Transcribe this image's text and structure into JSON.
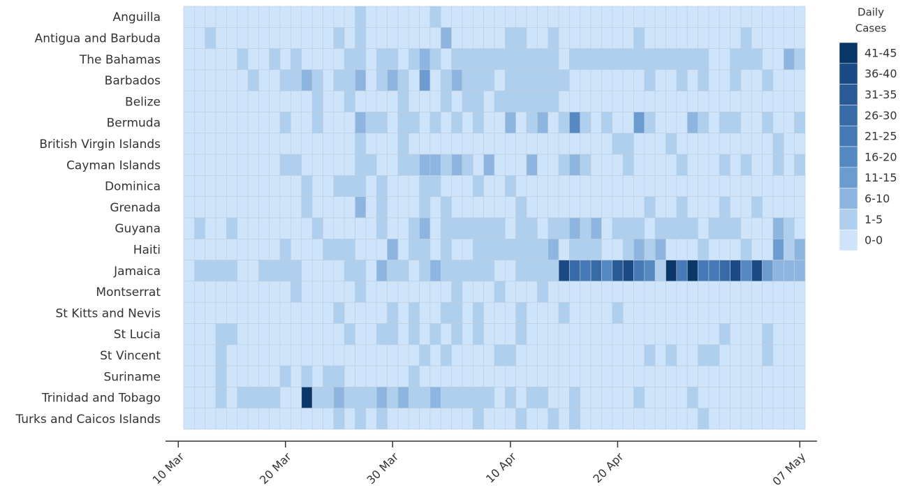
{
  "chart_data": {
    "type": "heatmap",
    "categories": [
      "Anguilla",
      "Antigua and Barbuda",
      "The Bahamas",
      "Barbados",
      "Belize",
      "Bermuda",
      "British Virgin Islands",
      "Cayman Islands",
      "Dominica",
      "Grenada",
      "Guyana",
      "Haiti",
      "Jamaica",
      "Montserrat",
      "St Kitts and Nevis",
      "St Lucia",
      "St Vincent",
      "Suriname",
      "Trinidad and Tobago",
      "Turks and Caicos Islands"
    ],
    "x": [
      1,
      2,
      3,
      4,
      5,
      6,
      7,
      8,
      9,
      10,
      11,
      12,
      13,
      14,
      15,
      16,
      17,
      18,
      19,
      20,
      21,
      22,
      23,
      24,
      25,
      26,
      27,
      28,
      29,
      30,
      31,
      32,
      33,
      34,
      35,
      36,
      37,
      38,
      39,
      40,
      41,
      42,
      43,
      44,
      45,
      46,
      47,
      48,
      49,
      50,
      51,
      52,
      53,
      54,
      55,
      56,
      57,
      58
    ],
    "xlim": [
      0.5,
      58.5
    ],
    "xticks": [
      {
        "value": 0,
        "label": "10 Mar"
      },
      {
        "value": 10,
        "label": "20 Mar"
      },
      {
        "value": 20,
        "label": "30 Mar"
      },
      {
        "value": 31,
        "label": "10 Apr"
      },
      {
        "value": 41,
        "label": "20 Apr"
      },
      {
        "value": 58,
        "label": "07 May"
      }
    ],
    "legend_title": [
      "Daily",
      "Cases"
    ],
    "color_bins": [
      {
        "label": "41-45",
        "color": "#0b3668"
      },
      {
        "label": "36-40",
        "color": "#1c4a84"
      },
      {
        "label": "31-35",
        "color": "#2a5a96"
      },
      {
        "label": "26-30",
        "color": "#376aa7"
      },
      {
        "label": "21-25",
        "color": "#4679b5"
      },
      {
        "label": "16-20",
        "color": "#5689c2"
      },
      {
        "label": "11-15",
        "color": "#6c9bcf"
      },
      {
        "label": "6-10",
        "color": "#8db5df"
      },
      {
        "label": "1-5",
        "color": "#afcfef"
      },
      {
        "label": "0-0",
        "color": "#cde4fb"
      }
    ],
    "values": [
      [
        0,
        0,
        0,
        0,
        0,
        0,
        0,
        0,
        0,
        0,
        0,
        0,
        0,
        0,
        0,
        0,
        2,
        0,
        0,
        0,
        0,
        0,
        0,
        2,
        0,
        0,
        0,
        0,
        0,
        0,
        0,
        0,
        0,
        0,
        0,
        0,
        0,
        0,
        0,
        0,
        0,
        0,
        0,
        0,
        0,
        0,
        0,
        0,
        0,
        0,
        0,
        0,
        0,
        0,
        0,
        0,
        0,
        0
      ],
      [
        0,
        0,
        2,
        0,
        0,
        0,
        0,
        0,
        0,
        0,
        0,
        0,
        0,
        0,
        2,
        0,
        2,
        0,
        0,
        0,
        0,
        0,
        0,
        0,
        7,
        0,
        0,
        0,
        0,
        0,
        2,
        2,
        0,
        0,
        2,
        0,
        0,
        0,
        0,
        0,
        0,
        0,
        2,
        0,
        0,
        0,
        0,
        0,
        0,
        0,
        0,
        0,
        2,
        0,
        0,
        0,
        0,
        0
      ],
      [
        0,
        0,
        0,
        0,
        0,
        2,
        0,
        0,
        2,
        0,
        2,
        0,
        0,
        0,
        0,
        2,
        2,
        0,
        2,
        2,
        0,
        2,
        7,
        2,
        0,
        2,
        2,
        2,
        2,
        2,
        2,
        2,
        2,
        2,
        2,
        0,
        2,
        2,
        2,
        2,
        2,
        2,
        2,
        2,
        2,
        2,
        2,
        2,
        2,
        0,
        0,
        2,
        2,
        2,
        0,
        0,
        7,
        2
      ],
      [
        0,
        0,
        0,
        0,
        0,
        0,
        2,
        0,
        0,
        2,
        2,
        7,
        2,
        0,
        2,
        2,
        7,
        0,
        2,
        7,
        2,
        0,
        12,
        0,
        2,
        7,
        2,
        2,
        2,
        0,
        2,
        2,
        2,
        2,
        2,
        2,
        0,
        0,
        0,
        0,
        0,
        0,
        0,
        2,
        0,
        0,
        2,
        0,
        2,
        0,
        0,
        2,
        0,
        0,
        2,
        0,
        0,
        0
      ],
      [
        0,
        0,
        0,
        0,
        0,
        0,
        0,
        0,
        0,
        0,
        0,
        0,
        2,
        0,
        0,
        2,
        0,
        0,
        0,
        0,
        2,
        0,
        0,
        0,
        2,
        0,
        2,
        2,
        0,
        2,
        2,
        2,
        2,
        2,
        2,
        0,
        0,
        0,
        0,
        0,
        0,
        0,
        0,
        0,
        0,
        0,
        0,
        0,
        0,
        0,
        0,
        0,
        0,
        0,
        0,
        0,
        0,
        0
      ],
      [
        0,
        0,
        0,
        0,
        0,
        0,
        0,
        0,
        0,
        2,
        0,
        0,
        2,
        0,
        0,
        0,
        7,
        2,
        2,
        0,
        2,
        2,
        0,
        2,
        0,
        2,
        0,
        2,
        0,
        0,
        7,
        0,
        2,
        7,
        0,
        2,
        17,
        2,
        0,
        2,
        0,
        0,
        12,
        2,
        0,
        0,
        0,
        7,
        2,
        0,
        2,
        2,
        0,
        0,
        2,
        0,
        0,
        2
      ],
      [
        0,
        0,
        0,
        0,
        0,
        0,
        0,
        0,
        0,
        0,
        0,
        0,
        0,
        0,
        0,
        0,
        2,
        0,
        0,
        0,
        2,
        0,
        0,
        0,
        0,
        0,
        0,
        0,
        0,
        0,
        0,
        0,
        0,
        0,
        0,
        0,
        0,
        0,
        0,
        0,
        2,
        2,
        0,
        0,
        0,
        2,
        0,
        0,
        0,
        0,
        0,
        0,
        0,
        0,
        0,
        2,
        0,
        0
      ],
      [
        0,
        0,
        0,
        0,
        0,
        0,
        0,
        0,
        0,
        2,
        2,
        0,
        0,
        0,
        0,
        0,
        2,
        2,
        0,
        0,
        2,
        2,
        7,
        7,
        2,
        7,
        2,
        0,
        7,
        0,
        0,
        0,
        7,
        0,
        0,
        2,
        7,
        2,
        0,
        0,
        0,
        2,
        0,
        0,
        0,
        0,
        2,
        0,
        0,
        0,
        2,
        0,
        2,
        0,
        0,
        2,
        0,
        2
      ],
      [
        0,
        0,
        0,
        0,
        0,
        0,
        0,
        0,
        0,
        0,
        0,
        2,
        0,
        0,
        2,
        2,
        2,
        0,
        2,
        0,
        0,
        0,
        2,
        2,
        0,
        0,
        0,
        2,
        0,
        0,
        2,
        0,
        0,
        0,
        0,
        0,
        0,
        0,
        0,
        0,
        0,
        0,
        0,
        0,
        0,
        0,
        0,
        0,
        0,
        0,
        0,
        0,
        0,
        0,
        0,
        0,
        0,
        0
      ],
      [
        0,
        0,
        0,
        0,
        0,
        0,
        0,
        0,
        0,
        0,
        0,
        2,
        0,
        0,
        0,
        0,
        7,
        0,
        2,
        0,
        0,
        0,
        2,
        0,
        2,
        0,
        0,
        0,
        0,
        0,
        0,
        2,
        0,
        0,
        0,
        0,
        0,
        0,
        0,
        0,
        0,
        0,
        0,
        2,
        0,
        0,
        2,
        0,
        0,
        0,
        2,
        0,
        0,
        2,
        0,
        0,
        0,
        0
      ],
      [
        0,
        2,
        0,
        0,
        2,
        0,
        0,
        0,
        0,
        0,
        0,
        0,
        2,
        0,
        0,
        0,
        0,
        0,
        2,
        0,
        0,
        2,
        7,
        0,
        2,
        2,
        2,
        2,
        2,
        2,
        0,
        2,
        2,
        0,
        2,
        2,
        7,
        2,
        7,
        0,
        2,
        2,
        2,
        0,
        2,
        2,
        2,
        2,
        0,
        2,
        2,
        2,
        0,
        0,
        0,
        7,
        2,
        0
      ],
      [
        0,
        0,
        0,
        0,
        0,
        0,
        0,
        0,
        0,
        2,
        0,
        0,
        0,
        2,
        2,
        2,
        0,
        0,
        0,
        7,
        0,
        2,
        2,
        0,
        2,
        0,
        0,
        2,
        2,
        2,
        2,
        2,
        2,
        2,
        7,
        0,
        2,
        2,
        2,
        0,
        0,
        2,
        7,
        2,
        7,
        0,
        0,
        0,
        2,
        0,
        0,
        0,
        2,
        0,
        0,
        12,
        2,
        7
      ],
      [
        0,
        2,
        2,
        2,
        2,
        0,
        0,
        2,
        2,
        2,
        2,
        0,
        0,
        0,
        0,
        2,
        2,
        0,
        7,
        2,
        2,
        0,
        2,
        7,
        2,
        2,
        2,
        2,
        2,
        0,
        0,
        2,
        2,
        2,
        2,
        38,
        27,
        22,
        27,
        17,
        33,
        38,
        22,
        17,
        2,
        43,
        22,
        43,
        22,
        22,
        27,
        38,
        17,
        38,
        12,
        7,
        7,
        7
      ],
      [
        0,
        0,
        0,
        0,
        0,
        0,
        0,
        0,
        0,
        0,
        2,
        0,
        0,
        0,
        0,
        0,
        2,
        0,
        0,
        0,
        0,
        0,
        0,
        0,
        0,
        2,
        0,
        0,
        0,
        2,
        0,
        0,
        0,
        2,
        0,
        0,
        0,
        0,
        0,
        0,
        0,
        0,
        0,
        0,
        0,
        0,
        0,
        0,
        0,
        0,
        0,
        0,
        0,
        0,
        0,
        0,
        0,
        0
      ],
      [
        0,
        0,
        0,
        0,
        0,
        0,
        0,
        0,
        0,
        0,
        0,
        0,
        0,
        0,
        2,
        0,
        0,
        0,
        0,
        2,
        0,
        2,
        0,
        0,
        2,
        2,
        0,
        2,
        0,
        0,
        0,
        2,
        0,
        0,
        0,
        2,
        0,
        0,
        0,
        0,
        2,
        0,
        0,
        0,
        0,
        0,
        0,
        0,
        0,
        0,
        0,
        0,
        0,
        0,
        0,
        0,
        0,
        0
      ],
      [
        0,
        0,
        0,
        2,
        2,
        0,
        0,
        0,
        0,
        0,
        0,
        0,
        0,
        0,
        0,
        2,
        0,
        0,
        2,
        2,
        0,
        2,
        0,
        2,
        0,
        2,
        0,
        2,
        0,
        0,
        0,
        2,
        0,
        0,
        0,
        0,
        0,
        0,
        0,
        0,
        0,
        0,
        0,
        0,
        0,
        0,
        0,
        0,
        0,
        0,
        2,
        0,
        0,
        0,
        2,
        0,
        0,
        0
      ],
      [
        0,
        0,
        0,
        2,
        0,
        0,
        0,
        0,
        0,
        0,
        0,
        0,
        0,
        0,
        0,
        0,
        0,
        0,
        0,
        0,
        0,
        0,
        2,
        0,
        2,
        0,
        0,
        0,
        0,
        2,
        2,
        0,
        0,
        0,
        0,
        0,
        0,
        0,
        0,
        0,
        0,
        0,
        0,
        2,
        0,
        2,
        0,
        0,
        2,
        2,
        0,
        0,
        0,
        0,
        2,
        0,
        0,
        0
      ],
      [
        0,
        0,
        0,
        2,
        0,
        0,
        0,
        0,
        0,
        2,
        0,
        2,
        0,
        2,
        2,
        0,
        0,
        0,
        0,
        0,
        0,
        2,
        0,
        0,
        0,
        0,
        0,
        0,
        0,
        0,
        0,
        0,
        0,
        0,
        0,
        0,
        0,
        0,
        0,
        0,
        0,
        0,
        0,
        0,
        0,
        0,
        0,
        0,
        0,
        0,
        0,
        0,
        0,
        0,
        0,
        0,
        0,
        0
      ],
      [
        0,
        0,
        0,
        2,
        0,
        2,
        2,
        2,
        2,
        0,
        0,
        43,
        2,
        2,
        7,
        2,
        2,
        2,
        7,
        2,
        7,
        2,
        2,
        7,
        2,
        2,
        2,
        2,
        2,
        0,
        2,
        0,
        2,
        2,
        0,
        0,
        2,
        0,
        0,
        0,
        0,
        0,
        2,
        0,
        0,
        0,
        0,
        2,
        0,
        0,
        0,
        0,
        0,
        0,
        0,
        0,
        0,
        0
      ],
      [
        0,
        0,
        0,
        0,
        0,
        0,
        0,
        0,
        0,
        0,
        0,
        0,
        0,
        0,
        2,
        0,
        2,
        0,
        2,
        0,
        0,
        0,
        0,
        0,
        0,
        0,
        0,
        2,
        0,
        0,
        0,
        2,
        0,
        0,
        2,
        0,
        2,
        0,
        0,
        0,
        0,
        0,
        0,
        0,
        0,
        0,
        0,
        0,
        2,
        0,
        0,
        0,
        0,
        0,
        0,
        0,
        0,
        0
      ]
    ]
  }
}
